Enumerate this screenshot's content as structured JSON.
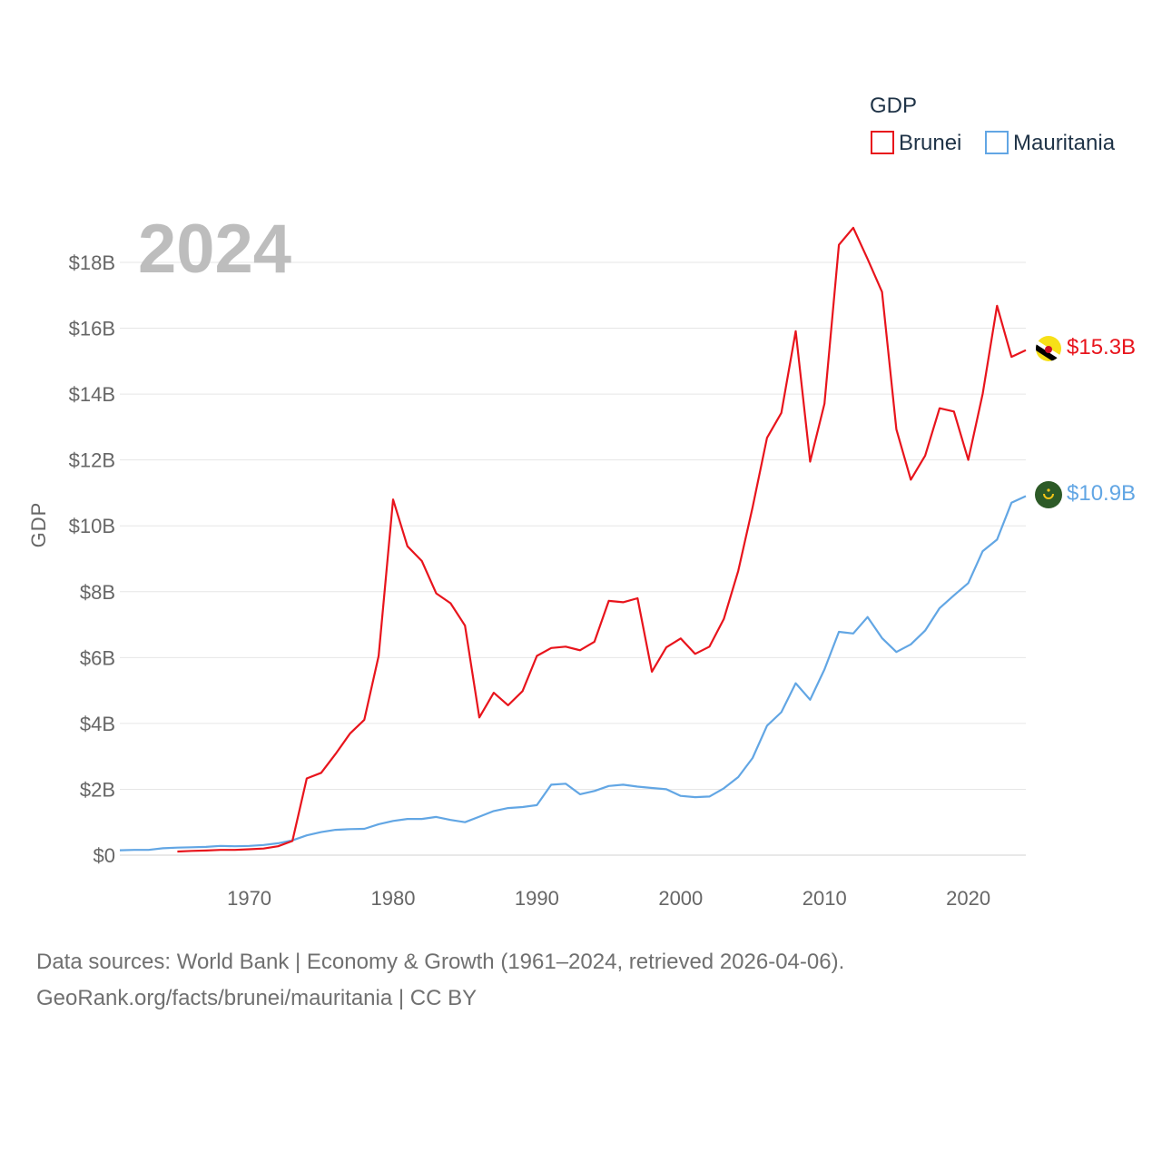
{
  "chart_data": {
    "type": "line",
    "title": "GDP",
    "ylabel": "GDP",
    "xlabel": "",
    "year_label": "2024",
    "xlim": [
      1961,
      2024
    ],
    "ylim": [
      0,
      19.5
    ],
    "y_ticks": [
      {
        "value": 0,
        "label": "$0"
      },
      {
        "value": 2,
        "label": "$2B"
      },
      {
        "value": 4,
        "label": "$4B"
      },
      {
        "value": 6,
        "label": "$6B"
      },
      {
        "value": 8,
        "label": "$8B"
      },
      {
        "value": 10,
        "label": "$10B"
      },
      {
        "value": 12,
        "label": "$12B"
      },
      {
        "value": 14,
        "label": "$14B"
      },
      {
        "value": 16,
        "label": "$16B"
      },
      {
        "value": 18,
        "label": "$18B"
      }
    ],
    "x_ticks": [
      {
        "value": 1970,
        "label": "1970"
      },
      {
        "value": 1980,
        "label": "1980"
      },
      {
        "value": 1990,
        "label": "1990"
      },
      {
        "value": 2000,
        "label": "2000"
      },
      {
        "value": 2010,
        "label": "2010"
      },
      {
        "value": 2020,
        "label": "2020"
      }
    ],
    "legend_title": "GDP",
    "series": [
      {
        "name": "Brunei",
        "color": "#e8141c",
        "end_label": "$15.3B",
        "icon": "brunei-flag-icon",
        "x": [
          1965,
          1966,
          1967,
          1968,
          1969,
          1970,
          1971,
          1972,
          1973,
          1974,
          1975,
          1976,
          1977,
          1978,
          1979,
          1980,
          1981,
          1982,
          1983,
          1984,
          1985,
          1986,
          1987,
          1988,
          1989,
          1990,
          1991,
          1992,
          1993,
          1994,
          1995,
          1996,
          1997,
          1998,
          1999,
          2000,
          2001,
          2002,
          2003,
          2004,
          2005,
          2006,
          2007,
          2008,
          2009,
          2010,
          2011,
          2012,
          2013,
          2014,
          2015,
          2016,
          2017,
          2018,
          2019,
          2020,
          2021,
          2022,
          2023,
          2024
        ],
        "values": [
          0.11,
          0.13,
          0.14,
          0.16,
          0.16,
          0.18,
          0.2,
          0.27,
          0.43,
          2.33,
          2.5,
          3.07,
          3.69,
          4.11,
          6.05,
          10.8,
          9.38,
          8.93,
          7.95,
          7.65,
          6.97,
          4.18,
          4.93,
          4.55,
          4.98,
          6.05,
          6.29,
          6.33,
          6.22,
          6.48,
          7.72,
          7.68,
          7.8,
          5.57,
          6.31,
          6.58,
          6.11,
          6.33,
          7.17,
          8.63,
          10.56,
          12.67,
          13.43,
          15.91,
          11.95,
          13.71,
          18.53,
          19.05,
          18.1,
          17.1,
          12.93,
          11.4,
          12.13,
          13.57,
          13.47,
          12.0,
          14.01,
          16.68,
          15.13,
          15.33
        ]
      },
      {
        "name": "Mauritania",
        "color": "#62a6e4",
        "end_label": "$10.9B",
        "icon": "mauritania-flag-icon",
        "x": [
          1961,
          1962,
          1963,
          1964,
          1965,
          1966,
          1967,
          1968,
          1969,
          1970,
          1971,
          1972,
          1973,
          1974,
          1975,
          1976,
          1977,
          1978,
          1979,
          1980,
          1981,
          1982,
          1983,
          1984,
          1985,
          1986,
          1987,
          1988,
          1989,
          1990,
          1991,
          1992,
          1993,
          1994,
          1995,
          1996,
          1997,
          1998,
          1999,
          2000,
          2001,
          2002,
          2003,
          2004,
          2005,
          2006,
          2007,
          2008,
          2009,
          2010,
          2011,
          2012,
          2013,
          2014,
          2015,
          2016,
          2017,
          2018,
          2019,
          2020,
          2021,
          2022,
          2023,
          2024
        ],
        "values": [
          0.15,
          0.16,
          0.16,
          0.21,
          0.23,
          0.24,
          0.25,
          0.28,
          0.27,
          0.28,
          0.31,
          0.36,
          0.45,
          0.6,
          0.7,
          0.77,
          0.79,
          0.8,
          0.94,
          1.04,
          1.1,
          1.1,
          1.16,
          1.07,
          1.0,
          1.17,
          1.34,
          1.43,
          1.46,
          1.52,
          2.14,
          2.17,
          1.85,
          1.95,
          2.1,
          2.14,
          2.08,
          2.04,
          2.0,
          1.8,
          1.76,
          1.78,
          2.03,
          2.37,
          2.95,
          3.93,
          4.34,
          5.22,
          4.72,
          5.64,
          6.78,
          6.73,
          7.23,
          6.59,
          6.17,
          6.4,
          6.82,
          7.5,
          7.89,
          8.26,
          9.23,
          9.58,
          10.7,
          10.9
        ]
      }
    ]
  },
  "footer": {
    "line1": "Data sources: World Bank | Economy & Growth (1961–2024, retrieved 2026-04-06).",
    "line2": "GeoRank.org/facts/brunei/mauritania | CC BY"
  }
}
